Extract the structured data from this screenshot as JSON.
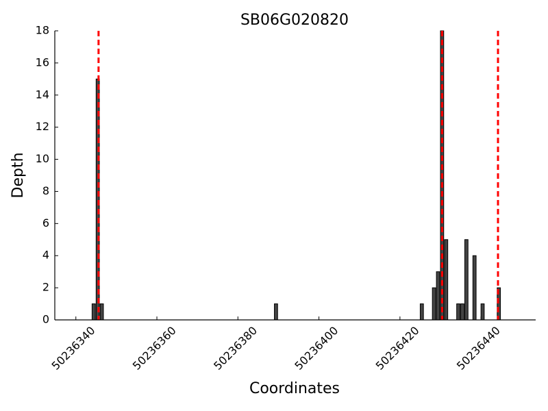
{
  "chart_data": {
    "type": "bar",
    "title": "SB06G020820",
    "xlabel": "Coordinates",
    "ylabel": "Depth",
    "x": [
      50236344,
      50236345,
      50236346,
      50236389,
      50236425,
      50236428,
      50236429,
      50236430,
      50236431,
      50236434,
      50236435,
      50236436,
      50236438,
      50236440,
      50236444
    ],
    "values": [
      1,
      15,
      1,
      1,
      1,
      2,
      3,
      18,
      5,
      1,
      1,
      5,
      4,
      1,
      2
    ],
    "color": "#444444",
    "vlines": {
      "x": [
        50236345.6,
        50236430.4,
        50236444.2
      ],
      "color": "#ff0000"
    },
    "xlim": [
      50236334.8,
      50236453.5
    ],
    "xticks": [
      50236340,
      50236360,
      50236380,
      50236400,
      50236420,
      50236440
    ],
    "ylim": [
      0,
      18
    ],
    "yticks": [
      0,
      2,
      4,
      6,
      8,
      10,
      12,
      14,
      16,
      18
    ]
  }
}
